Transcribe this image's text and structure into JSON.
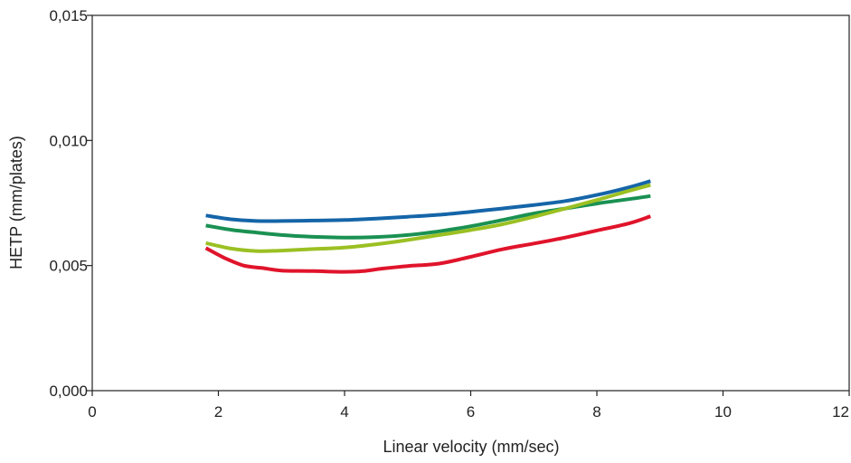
{
  "chart_data": {
    "type": "line",
    "title": "",
    "xlabel": "Linear velocity (mm/sec)",
    "ylabel": "HETP (mm/plates)",
    "xlim": [
      0,
      12
    ],
    "ylim": [
      0,
      0.015
    ],
    "x_ticks": [
      {
        "value": 0,
        "label": "0"
      },
      {
        "value": 2,
        "label": "2"
      },
      {
        "value": 4,
        "label": "4"
      },
      {
        "value": 6,
        "label": "6"
      },
      {
        "value": 8,
        "label": "8"
      },
      {
        "value": 10,
        "label": "10"
      },
      {
        "value": 12,
        "label": "12"
      }
    ],
    "y_ticks": [
      {
        "value": 0,
        "label": "0,000"
      },
      {
        "value": 0.005,
        "label": "0,005"
      },
      {
        "value": 0.01,
        "label": "0,010"
      },
      {
        "value": 0.015,
        "label": "0,015"
      }
    ],
    "grid": false,
    "legend": "none",
    "series": [
      {
        "color": "#1565a8",
        "x": [
          1.8,
          2.2,
          2.6,
          3.0,
          3.5,
          4.0,
          4.5,
          5.0,
          5.5,
          6.0,
          6.5,
          7.0,
          7.5,
          8.0,
          8.5,
          8.85
        ],
        "y": [
          0.007,
          0.00685,
          0.00678,
          0.00678,
          0.0068,
          0.00682,
          0.00688,
          0.00695,
          0.00703,
          0.00715,
          0.00728,
          0.00742,
          0.00758,
          0.00782,
          0.00812,
          0.00838
        ]
      },
      {
        "color": "#1a9152",
        "x": [
          1.8,
          2.2,
          2.6,
          3.0,
          3.5,
          4.0,
          4.5,
          5.0,
          5.5,
          6.0,
          6.5,
          7.0,
          7.5,
          8.0,
          8.5,
          8.85
        ],
        "y": [
          0.0066,
          0.00643,
          0.00632,
          0.00622,
          0.00615,
          0.00612,
          0.00614,
          0.00622,
          0.00637,
          0.00657,
          0.00682,
          0.00708,
          0.00728,
          0.00748,
          0.00765,
          0.00778
        ]
      },
      {
        "color": "#9bc023",
        "x": [
          1.8,
          2.2,
          2.6,
          3.0,
          3.5,
          4.0,
          4.5,
          5.0,
          5.5,
          6.0,
          6.5,
          7.0,
          7.5,
          8.0,
          8.5,
          8.85
        ],
        "y": [
          0.0059,
          0.00568,
          0.00558,
          0.0056,
          0.00566,
          0.00572,
          0.00585,
          0.00602,
          0.00622,
          0.00642,
          0.00665,
          0.00695,
          0.00728,
          0.00762,
          0.00798,
          0.00822
        ]
      },
      {
        "color": "#e0142b",
        "x": [
          1.8,
          2.1,
          2.4,
          2.7,
          3.0,
          3.5,
          4.0,
          4.3,
          4.6,
          5.0,
          5.5,
          6.0,
          6.5,
          7.0,
          7.5,
          8.0,
          8.5,
          8.85
        ],
        "y": [
          0.0057,
          0.0053,
          0.005,
          0.0049,
          0.0048,
          0.00478,
          0.00475,
          0.00478,
          0.00488,
          0.00498,
          0.00508,
          0.00535,
          0.00565,
          0.00588,
          0.00612,
          0.0064,
          0.00668,
          0.00697
        ]
      }
    ]
  }
}
